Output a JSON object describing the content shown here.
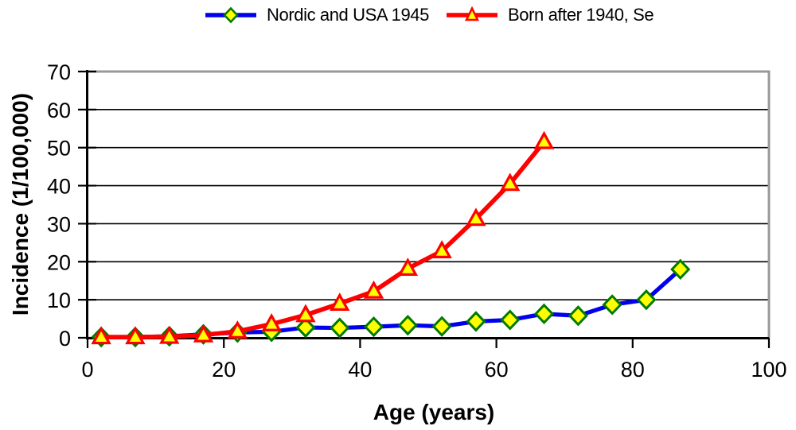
{
  "chart_data": {
    "type": "line",
    "title": "",
    "xlabel": "Age (years)",
    "ylabel": "Incidence (1/100,000)",
    "xlim": [
      0,
      100
    ],
    "ylim": [
      0,
      70
    ],
    "x_ticks": [
      0,
      20,
      40,
      60,
      80,
      100
    ],
    "y_ticks": [
      0,
      10,
      20,
      30,
      40,
      50,
      60,
      70
    ],
    "grid": "horizontal",
    "legend_position": "top-center",
    "series": [
      {
        "name": "Nordic and USA 1945",
        "color": "#0000EE",
        "marker": "diamond",
        "marker_fill": "#FFFF00",
        "marker_border": "#007A00",
        "x": [
          2,
          7,
          12,
          17,
          22,
          27,
          32,
          37,
          42,
          47,
          52,
          57,
          62,
          67,
          72,
          77,
          82,
          87
        ],
        "values": [
          0.2,
          0.2,
          0.4,
          0.9,
          1.4,
          1.6,
          2.7,
          2.6,
          2.9,
          3.3,
          3.0,
          4.3,
          4.7,
          6.3,
          5.8,
          8.7,
          10.0,
          18.0
        ]
      },
      {
        "name": "Born after 1940, Se",
        "color": "#FF0000",
        "marker": "triangle",
        "marker_fill": "#FFFF00",
        "marker_border": "#FF0000",
        "x": [
          2,
          7,
          12,
          17,
          22,
          27,
          32,
          37,
          42,
          47,
          52,
          57,
          62,
          67
        ],
        "values": [
          0.2,
          0.2,
          0.3,
          0.7,
          1.7,
          3.6,
          6.0,
          9.0,
          12.2,
          18.2,
          22.8,
          31.3,
          40.5,
          51.5
        ]
      }
    ],
    "style": {
      "axis_color": "#000000",
      "grid_color": "#000000",
      "plot_border_color": "#999999",
      "background": "#FFFFFF",
      "tick_label_color": "#000000"
    }
  }
}
